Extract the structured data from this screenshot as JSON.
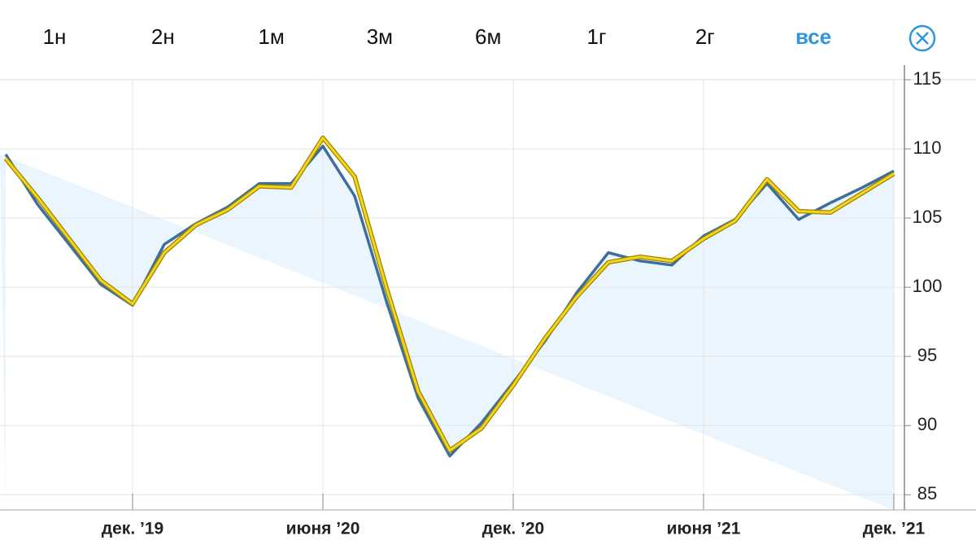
{
  "tabs": {
    "items": [
      "1н",
      "2н",
      "1м",
      "3м",
      "6м",
      "1г",
      "2г",
      "все"
    ],
    "selected": 7
  },
  "chart_data": {
    "type": "line",
    "x": [
      "2019-08",
      "2019-09",
      "2019-10",
      "2019-11",
      "2019-12",
      "2020-01",
      "2020-02",
      "2020-03",
      "2020-04",
      "2020-05",
      "2020-06",
      "2020-07",
      "2020-08",
      "2020-09",
      "2020-10",
      "2020-11",
      "2020-12",
      "2021-01",
      "2021-02",
      "2021-03",
      "2021-04",
      "2021-05",
      "2021-06",
      "2021-07",
      "2021-08",
      "2021-09",
      "2021-10",
      "2021-11",
      "2021-12"
    ],
    "xticks": [
      {
        "value": "2019-12",
        "label": "дек. ’19"
      },
      {
        "value": "2020-06",
        "label": "июня ’20"
      },
      {
        "value": "2020-12",
        "label": "дек. ’20"
      },
      {
        "value": "2021-06",
        "label": "июня ’21"
      },
      {
        "value": "2021-12",
        "label": "дек. ’21"
      }
    ],
    "series": [
      {
        "color": "#3d6f9e",
        "fill": "#eaf5fd",
        "values": [
          109.6,
          106,
          103.1,
          100.2,
          98.7,
          103.1,
          104.6,
          105.8,
          107.5,
          107.5,
          110.2,
          106.6,
          99,
          92,
          87.8,
          90.2,
          93.1,
          96.1,
          99.6,
          102.5,
          101.9,
          101.6,
          103.7,
          104.9,
          107.5,
          104.9,
          106.1,
          107.2,
          108.4
        ]
      },
      {
        "color": "#f2d51c",
        "values": [
          109.3,
          106.5,
          103.5,
          100.5,
          98.8,
          102.5,
          104.5,
          105.6,
          107.3,
          107.2,
          110.8,
          108,
          100,
          92.5,
          88.2,
          89.8,
          92.9,
          96.3,
          99.3,
          101.8,
          102.2,
          101.9,
          103.5,
          104.8,
          107.8,
          105.5,
          105.4,
          106.8,
          108.2
        ]
      }
    ],
    "ylim": [
      83.9,
      115
    ],
    "yticks": [
      85,
      90,
      95,
      100,
      105,
      110,
      115
    ],
    "grid": true
  }
}
